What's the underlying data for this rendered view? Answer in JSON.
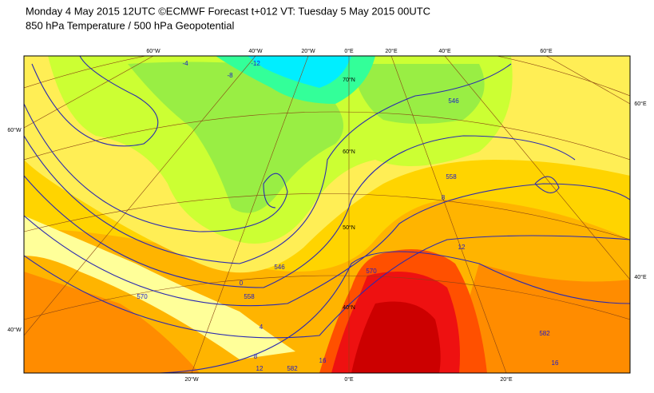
{
  "header": {
    "line1": "Monday 4 May 2015 12UTC ©ECMWF Forecast t+012 VT: Tuesday 5 May 2015 00UTC",
    "line2": "850 hPa Temperature / 500 hPa Geopotential"
  },
  "map": {
    "top_longitude_labels": [
      "60°W",
      "40°W",
      "20°W",
      "0°E",
      "20°E",
      "40°E",
      "60°E"
    ],
    "bottom_longitude_labels": [
      "20°W",
      "0°E",
      "20°E"
    ],
    "left_labels": [
      "60°W",
      "40°W"
    ],
    "right_labels": [
      "60°E",
      "40°E"
    ],
    "latitude_labels": [
      "70°N",
      "60°N",
      "50°N",
      "40°N"
    ],
    "contour_labels": [
      "546",
      "558",
      "570",
      "582",
      "0",
      "4",
      "8",
      "12",
      "16",
      "8",
      "12",
      "16",
      "582",
      "570",
      "558",
      "546",
      "-12",
      "-8",
      "-4"
    ]
  }
}
